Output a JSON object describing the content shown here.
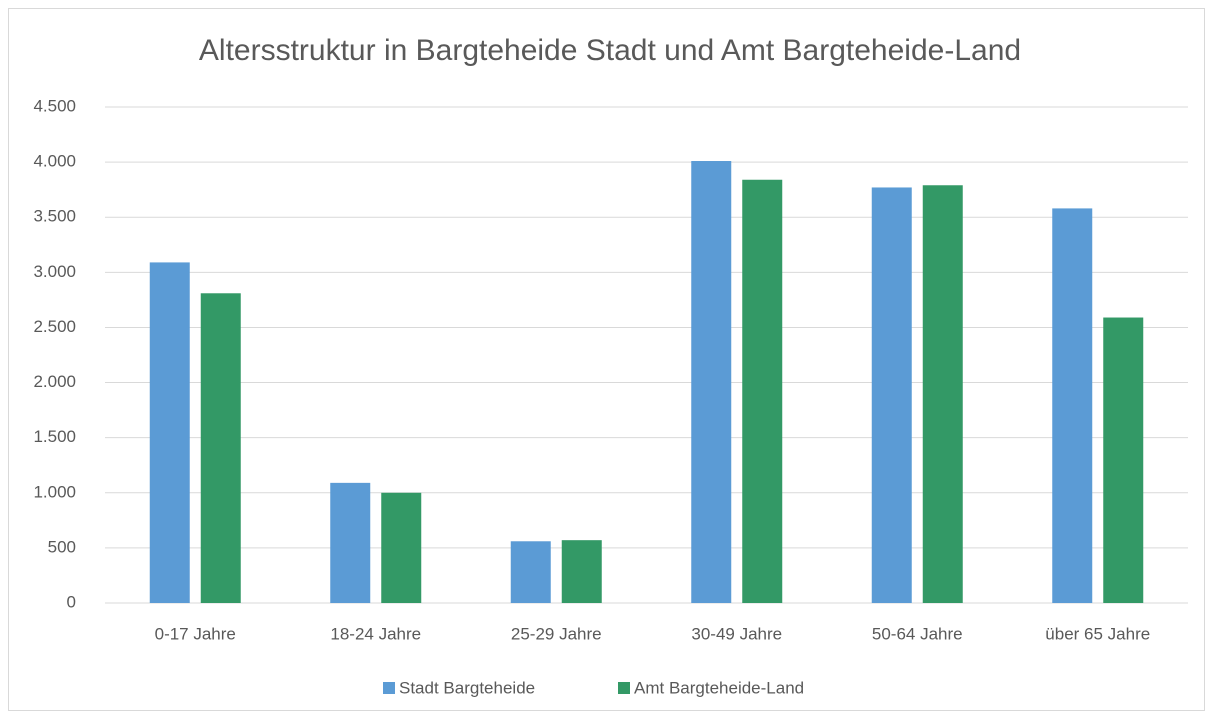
{
  "chart_data": {
    "type": "bar",
    "title": "Altersstruktur in Bargteheide Stadt und Amt Bargteheide-Land",
    "categories": [
      "0-17 Jahre",
      "18-24 Jahre",
      "25-29 Jahre",
      "30-49 Jahre",
      "50-64 Jahre",
      "über 65 Jahre"
    ],
    "series": [
      {
        "name": "Stadt Bargteheide",
        "color": "#5b9bd5",
        "values": [
          3090,
          1090,
          560,
          4010,
          3770,
          3580
        ]
      },
      {
        "name": "Amt Bargteheide-Land",
        "color": "#339966",
        "values": [
          2810,
          1000,
          570,
          3840,
          3790,
          2590
        ]
      }
    ],
    "ylim": [
      0,
      4500
    ],
    "yticks": [
      0,
      500,
      {
        "value": 1000,
        "label": "1.000"
      },
      {
        "value": 1500,
        "label": "1.500"
      },
      {
        "value": 2000,
        "label": "2.000"
      },
      {
        "value": 2500,
        "label": "2.500"
      },
      {
        "value": 3000,
        "label": "3.000"
      },
      {
        "value": 3500,
        "label": "3.500"
      },
      {
        "value": 4000,
        "label": "4.000"
      },
      {
        "value": 4500,
        "label": "4.500"
      }
    ],
    "grid": true,
    "legend": "bottom"
  }
}
